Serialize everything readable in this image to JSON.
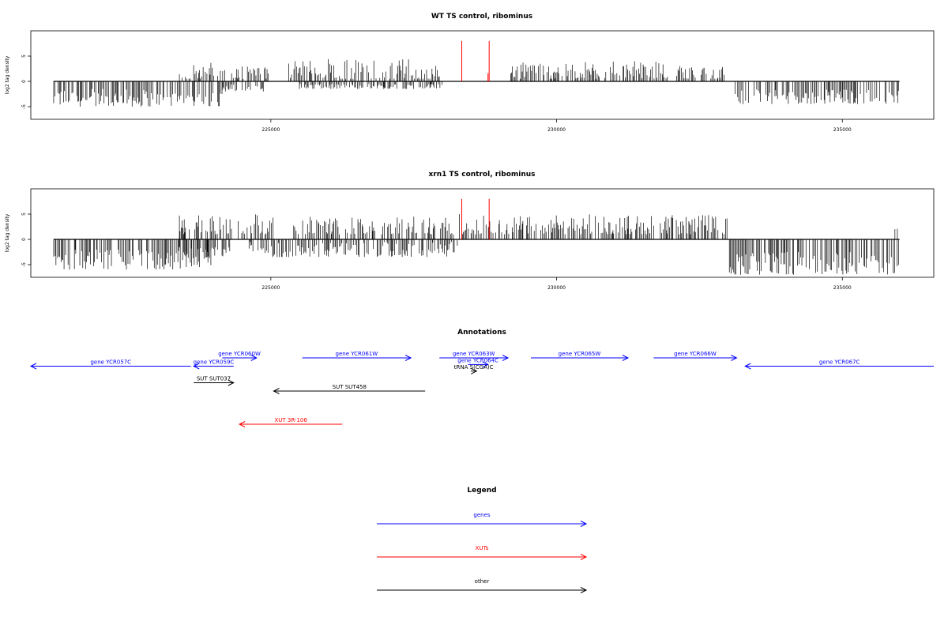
{
  "chart_data": [
    {
      "type": "bar",
      "title": "WT TS control, ribominus",
      "ylabel": "log2 tag density",
      "xlim": [
        220800,
        236600
      ],
      "ylim": [
        -7.5,
        10
      ],
      "x_ticks": [
        225000,
        230000,
        235000
      ],
      "x_tick_labels": [
        "225000",
        "230000",
        "235000"
      ],
      "y_ticks": [
        -5,
        0,
        5
      ],
      "y_tick_labels": [
        "-5",
        "0",
        "5"
      ],
      "series": [
        {
          "strand": "minus",
          "color": "#000000",
          "profile": [
            {
              "start": 221200,
              "end": 224150,
              "min": -5.0,
              "max": -1.5
            },
            {
              "start": 224150,
              "end": 224900,
              "min": -2.0,
              "max": -0.5
            },
            {
              "start": 225500,
              "end": 228000,
              "min": -1.5,
              "max": -0.5
            },
            {
              "start": 233100,
              "end": 236000,
              "min": -4.5,
              "max": -1.5
            }
          ]
        },
        {
          "strand": "plus",
          "color": "#000000",
          "profile": [
            {
              "start": 223400,
              "end": 224200,
              "min": 0.5,
              "max": 3.8
            },
            {
              "start": 224300,
              "end": 225000,
              "min": 0.5,
              "max": 3.5
            },
            {
              "start": 225300,
              "end": 228000,
              "min": 0.5,
              "max": 4.5
            },
            {
              "start": 229200,
              "end": 232000,
              "min": 0.5,
              "max": 4.0
            },
            {
              "start": 232100,
              "end": 233000,
              "min": 0.5,
              "max": 3.0
            }
          ]
        }
      ],
      "highlights": {
        "color": "#ff0000",
        "positions": [
          228340,
          228820,
          228800
        ],
        "values": [
          8,
          8,
          1.6
        ]
      }
    },
    {
      "type": "bar",
      "title": "xrn1 TS control, ribominus",
      "ylabel": "log2 tag density",
      "xlim": [
        220800,
        236600
      ],
      "ylim": [
        -7.5,
        10
      ],
      "x_ticks": [
        225000,
        230000,
        235000
      ],
      "x_tick_labels": [
        "225000",
        "230000",
        "235000"
      ],
      "y_ticks": [
        -5,
        0,
        5
      ],
      "y_tick_labels": [
        "-5",
        "0",
        "5"
      ],
      "series": [
        {
          "strand": "minus",
          "color": "#000000",
          "profile": [
            {
              "start": 221200,
              "end": 224000,
              "min": -6.0,
              "max": -2.0
            },
            {
              "start": 223400,
              "end": 224300,
              "min": -3.5,
              "max": -1.5
            },
            {
              "start": 224600,
              "end": 228300,
              "min": -3.5,
              "max": -0.5
            },
            {
              "start": 233000,
              "end": 236000,
              "min": -7.0,
              "max": -2.5
            }
          ]
        },
        {
          "strand": "plus",
          "color": "#000000",
          "profile": [
            {
              "start": 223400,
              "end": 224400,
              "min": 1.0,
              "max": 5.0
            },
            {
              "start": 224400,
              "end": 225100,
              "min": 1.0,
              "max": 5.5
            },
            {
              "start": 225400,
              "end": 228200,
              "min": 1.0,
              "max": 4.5
            },
            {
              "start": 228300,
              "end": 233000,
              "min": 1.0,
              "max": 5.0
            },
            {
              "start": 235900,
              "end": 236000,
              "min": 2.0,
              "max": 2.5
            }
          ]
        }
      ],
      "highlights": {
        "color": "#ff0000",
        "positions": [
          228340,
          228820
        ],
        "values": [
          8,
          8
        ]
      }
    }
  ],
  "annotations": {
    "title": "Annotations",
    "features": [
      {
        "label": "gene YCR057C",
        "category": "genes",
        "start": 220800,
        "end": 223600,
        "strand": "-",
        "row": 1
      },
      {
        "label": "gene YCR059C",
        "category": "genes",
        "start": 223650,
        "end": 224350,
        "strand": "-",
        "row": 1
      },
      {
        "label": "gene YCR060W",
        "category": "genes",
        "start": 224150,
        "end": 224750,
        "strand": "+",
        "row": 0
      },
      {
        "label": "gene YCR061W",
        "category": "genes",
        "start": 225550,
        "end": 227450,
        "strand": "+",
        "row": 0
      },
      {
        "label": "gene YCR063W",
        "category": "genes",
        "start": 227950,
        "end": 229150,
        "strand": "+",
        "row": 0
      },
      {
        "label": "gene YCR064C",
        "category": "genes",
        "start": 228450,
        "end": 228800,
        "strand": "+",
        "row": 0.8
      },
      {
        "label": "tRNA S(CGA)C",
        "category": "other",
        "start": 228500,
        "end": 228600,
        "strand": "+",
        "row": 1.6
      },
      {
        "label": "gene YCR065W",
        "category": "genes",
        "start": 229550,
        "end": 231250,
        "strand": "+",
        "row": 0
      },
      {
        "label": "gene YCR066W",
        "category": "genes",
        "start": 231700,
        "end": 233150,
        "strand": "+",
        "row": 0
      },
      {
        "label": "gene YCR067C",
        "category": "genes",
        "start": 233300,
        "end": 236600,
        "strand": "-",
        "row": 1
      },
      {
        "label": "SUT SUT037",
        "category": "other",
        "start": 223650,
        "end": 224350,
        "strand": "+",
        "row": 3
      },
      {
        "label": "SUT SUT458",
        "category": "other",
        "start": 225050,
        "end": 227700,
        "strand": "-",
        "row": 4
      },
      {
        "label": "XUT 3R-106",
        "category": "XUTs",
        "start": 224450,
        "end": 226250,
        "strand": "-",
        "row": 8
      }
    ]
  },
  "legend": {
    "title": "Legend",
    "entries": [
      {
        "label": "genes",
        "color": "#0000ff"
      },
      {
        "label": "XUTs",
        "color": "#ff0000"
      },
      {
        "label": "other",
        "color": "#000000"
      }
    ]
  }
}
